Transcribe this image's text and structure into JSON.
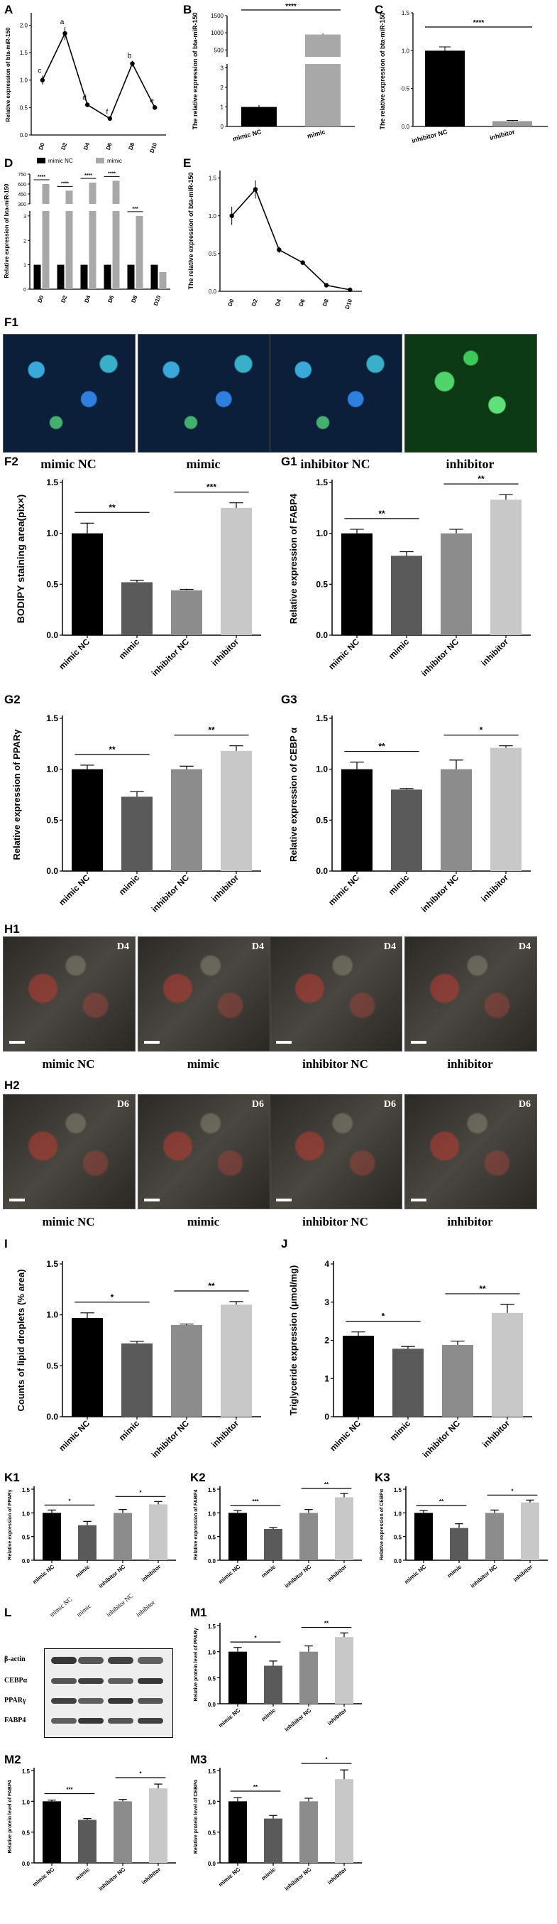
{
  "labels": {
    "A": "A",
    "B": "B",
    "C": "C",
    "D": "D",
    "E": "E",
    "F1": "F1",
    "F2": "F2",
    "G1": "G1",
    "G2": "G2",
    "G3": "G3",
    "H1": "H1",
    "H2": "H2",
    "I": "I",
    "J": "J",
    "K1": "K1",
    "K2": "K2",
    "K3": "K3",
    "L": "L",
    "M1": "M1",
    "M2": "M2",
    "M3": "M3"
  },
  "groups4": [
    "mimic NC",
    "mimic",
    "inhibitor NC",
    "inhibitor"
  ],
  "days6": [
    "D0",
    "D2",
    "D4",
    "D6",
    "D8",
    "D10"
  ],
  "colors": {
    "black": "#000000",
    "darkgray": "#5a5a5a",
    "midgray": "#8c8c8c",
    "lightgray": "#c8c8c8",
    "blue": "#2a4cc7",
    "green": "#2fbf4f"
  },
  "fluor": {
    "captions": [
      "mimic NC",
      "mimic",
      "inhibitor NC",
      "inhibitor"
    ]
  },
  "oilred": {
    "row1": {
      "captions": [
        "mimic NC",
        "mimic",
        "inhibitor NC",
        "inhibitor"
      ],
      "tag": "D4"
    },
    "row2": {
      "captions": [
        "mimic NC",
        "mimic",
        "inhibitor NC",
        "inhibitor"
      ],
      "tag": "D6"
    }
  },
  "blot": {
    "lane_labels": [
      "mimic NC",
      "mimic",
      "inhibitor NC",
      "inhibitor"
    ],
    "proteins": [
      "β-actin",
      "CEBPα",
      "PPARγ",
      "FABP4"
    ]
  },
  "chart_data": [
    {
      "id": "A",
      "type": "line",
      "x": [
        "D0",
        "D2",
        "D4",
        "D6",
        "D8",
        "D10"
      ],
      "values": [
        1.0,
        1.85,
        0.55,
        0.3,
        1.3,
        0.5
      ],
      "errors": [
        0.08,
        0.12,
        0.04,
        0.03,
        0.05,
        0.04
      ],
      "letters": [
        "c",
        "a",
        "d",
        "f",
        "b",
        "e"
      ],
      "ylabel": "Relative expression of bta-miR-150",
      "yticks": [
        0.0,
        0.5,
        1.0,
        1.5,
        2.0
      ],
      "ylim": [
        0,
        2.2
      ]
    },
    {
      "id": "B",
      "type": "bar",
      "categories": [
        "mimic NC",
        "mimic"
      ],
      "values": [
        1,
        950
      ],
      "errors": [
        0.1,
        30
      ],
      "sig": "****",
      "ylabel": "The relative expression of bta-miR-150",
      "yticks_upper": [
        500,
        1000,
        1500
      ],
      "yticks_lower": [
        0,
        1,
        2,
        3
      ]
    },
    {
      "id": "C",
      "type": "bar",
      "categories": [
        "inhibitor NC",
        "inhibitor"
      ],
      "values": [
        1.0,
        0.07
      ],
      "errors": [
        0.05,
        0.01
      ],
      "sig": "****",
      "ylabel": "The relative expression of bta-miR-150",
      "yticks": [
        0.0,
        0.5,
        1.0,
        1.5
      ],
      "ylim": [
        0,
        1.5
      ]
    },
    {
      "id": "D",
      "type": "bar",
      "categories": [
        "D0",
        "D2",
        "D4",
        "D6",
        "D8",
        "D10"
      ],
      "series": [
        {
          "name": "mimic NC",
          "values": [
            1,
            1,
            1,
            1,
            1,
            1
          ]
        },
        {
          "name": "mimic",
          "values": [
            600,
            500,
            620,
            650,
            3,
            0.7
          ]
        }
      ],
      "sig": [
        "****",
        "****",
        "****",
        "****",
        "***",
        ""
      ],
      "ylabel": "Relative expression of bta-miR-150",
      "yticks_upper": [
        300,
        450,
        600,
        750
      ],
      "yticks_lower": [
        0,
        1,
        2,
        3
      ]
    },
    {
      "id": "E",
      "type": "line",
      "x": [
        "D0",
        "D2",
        "D4",
        "D6",
        "D8",
        "D10"
      ],
      "values": [
        1.0,
        1.35,
        0.55,
        0.38,
        0.08,
        0.02
      ],
      "errors": [
        0.12,
        0.12,
        0.04,
        0.03,
        0.02,
        0.01
      ],
      "ylabel": "The relative expression of bta-miR-150",
      "yticks": [
        0.0,
        0.5,
        1.0,
        1.5
      ],
      "ylim": [
        0,
        1.6
      ]
    },
    {
      "id": "F2",
      "type": "bar",
      "categories": [
        "mimic NC",
        "mimic",
        "inhibitor NC",
        "inhibitor"
      ],
      "values": [
        1.0,
        0.52,
        0.44,
        1.25
      ],
      "errors": [
        0.1,
        0.02,
        0.01,
        0.05
      ],
      "sig": [
        [
          "mimic NC",
          "mimic",
          "**"
        ],
        [
          "inhibitor NC",
          "inhibitor",
          "***"
        ]
      ],
      "ylabel": "BODIPY staining area(pix×)",
      "yticks": [
        0.0,
        0.5,
        1.0,
        1.5
      ],
      "ylim": [
        0,
        1.5
      ]
    },
    {
      "id": "G1",
      "type": "bar",
      "categories": [
        "mimic NC",
        "mimic",
        "inhibitor NC",
        "inhibitor"
      ],
      "values": [
        1.0,
        0.78,
        1.0,
        1.33
      ],
      "errors": [
        0.04,
        0.04,
        0.04,
        0.05
      ],
      "sig": [
        [
          "mimic NC",
          "mimic",
          "**"
        ],
        [
          "inhibitor NC",
          "inhibitor",
          "**"
        ]
      ],
      "ylabel": "Relative expression of FABP4",
      "yticks": [
        0.0,
        0.5,
        1.0,
        1.5
      ],
      "ylim": [
        0,
        1.5
      ]
    },
    {
      "id": "G2",
      "type": "bar",
      "categories": [
        "mimic NC",
        "mimic",
        "inhibitor NC",
        "inhibitor"
      ],
      "values": [
        1.0,
        0.73,
        1.0,
        1.18
      ],
      "errors": [
        0.04,
        0.05,
        0.03,
        0.05
      ],
      "sig": [
        [
          "mimic NC",
          "mimic",
          "**"
        ],
        [
          "inhibitor NC",
          "inhibitor",
          "**"
        ]
      ],
      "ylabel": "Relative expression of PPARγ",
      "yticks": [
        0.0,
        0.5,
        1.0,
        1.5
      ],
      "ylim": [
        0,
        1.5
      ]
    },
    {
      "id": "G3",
      "type": "bar",
      "categories": [
        "mimic NC",
        "mimic",
        "inhibitor NC",
        "inhibitor"
      ],
      "values": [
        1.0,
        0.8,
        1.0,
        1.21
      ],
      "errors": [
        0.07,
        0.01,
        0.09,
        0.02
      ],
      "sig": [
        [
          "mimic NC",
          "mimic",
          "**"
        ],
        [
          "inhibitor NC",
          "inhibitor",
          "*"
        ]
      ],
      "ylabel": "Relative expression of CEBP α",
      "yticks": [
        0.0,
        0.5,
        1.0,
        1.5
      ],
      "ylim": [
        0,
        1.5
      ]
    },
    {
      "id": "I",
      "type": "bar",
      "categories": [
        "mimic NC",
        "mimic",
        "inhibitor NC",
        "inhibitor"
      ],
      "values": [
        0.97,
        0.72,
        0.9,
        1.1
      ],
      "errors": [
        0.05,
        0.02,
        0.01,
        0.03
      ],
      "sig": [
        [
          "mimic NC",
          "mimic",
          "*"
        ],
        [
          "inhibitor NC",
          "inhibitor",
          "**"
        ]
      ],
      "ylabel": "Counts of lipid droplets (% area)",
      "yticks": [
        0.0,
        0.5,
        1.0,
        1.5
      ],
      "ylim": [
        0,
        1.5
      ]
    },
    {
      "id": "J",
      "type": "bar",
      "categories": [
        "mimic NC",
        "mimic",
        "inhibitor NC",
        "inhibitor"
      ],
      "values": [
        2.12,
        1.78,
        1.88,
        2.72
      ],
      "errors": [
        0.1,
        0.06,
        0.1,
        0.22
      ],
      "sig": [
        [
          "mimic NC",
          "mimic",
          "*"
        ],
        [
          "inhibitor NC",
          "inhibitor",
          "**"
        ]
      ],
      "ylabel": "Triglyceride expression (μmol/mg)",
      "yticks": [
        0,
        1,
        2,
        3,
        4
      ],
      "ylim": [
        0,
        4
      ]
    },
    {
      "id": "K1",
      "type": "bar",
      "categories": [
        "mimic NC",
        "mimic",
        "inhibitor NC",
        "inhibitor"
      ],
      "values": [
        1.0,
        0.74,
        1.0,
        1.18
      ],
      "errors": [
        0.06,
        0.08,
        0.07,
        0.06
      ],
      "sig": [
        [
          "mimic NC",
          "mimic",
          "*"
        ],
        [
          "inhibitor NC",
          "inhibitor",
          "*"
        ]
      ],
      "ylabel": "Relative expression of PPARγ",
      "yticks": [
        0.0,
        0.5,
        1.0,
        1.5
      ],
      "ylim": [
        0,
        1.5
      ]
    },
    {
      "id": "K2",
      "type": "bar",
      "categories": [
        "mimic NC",
        "mimic",
        "inhibitor NC",
        "inhibitor"
      ],
      "values": [
        1.0,
        0.66,
        1.0,
        1.33
      ],
      "errors": [
        0.05,
        0.03,
        0.07,
        0.08
      ],
      "sig": [
        [
          "mimic NC",
          "mimic",
          "***"
        ],
        [
          "inhibitor NC",
          "inhibitor",
          "**"
        ]
      ],
      "ylabel": "Relative expression of FABP4",
      "yticks": [
        0.0,
        0.5,
        1.0,
        1.5
      ],
      "ylim": [
        0,
        1.5
      ]
    },
    {
      "id": "K3",
      "type": "bar",
      "categories": [
        "mimic NC",
        "mimic",
        "inhibitor NC",
        "inhibitor"
      ],
      "values": [
        1.0,
        0.68,
        1.0,
        1.22
      ],
      "errors": [
        0.05,
        0.09,
        0.06,
        0.05
      ],
      "sig": [
        [
          "mimic NC",
          "mimic",
          "**"
        ],
        [
          "inhibitor NC",
          "inhibitor",
          "*"
        ]
      ],
      "ylabel": "Relative expression of CEBPα",
      "yticks": [
        0.0,
        0.5,
        1.0,
        1.5
      ],
      "ylim": [
        0,
        1.5
      ]
    },
    {
      "id": "M1",
      "type": "bar",
      "categories": [
        "mimic NC",
        "mimic",
        "inhibitor NC",
        "inhibitor"
      ],
      "values": [
        1.0,
        0.73,
        1.0,
        1.28
      ],
      "errors": [
        0.08,
        0.09,
        0.11,
        0.08
      ],
      "sig": [
        [
          "mimic NC",
          "mimic",
          "*"
        ],
        [
          "inhibitor NC",
          "inhibitor",
          "**"
        ]
      ],
      "ylabel": "Relative protein level of PPARγ",
      "yticks": [
        0.0,
        0.5,
        1.0,
        1.5
      ],
      "ylim": [
        0,
        1.5
      ]
    },
    {
      "id": "M2",
      "type": "bar",
      "categories": [
        "mimic NC",
        "mimic",
        "inhibitor NC",
        "inhibitor"
      ],
      "values": [
        1.0,
        0.7,
        1.0,
        1.21
      ],
      "errors": [
        0.02,
        0.02,
        0.03,
        0.07
      ],
      "sig": [
        [
          "mimic NC",
          "mimic",
          "***"
        ],
        [
          "inhibitor NC",
          "inhibitor",
          "*"
        ]
      ],
      "ylabel": "Relative protein level of FABP4",
      "yticks": [
        0.0,
        0.5,
        1.0,
        1.5
      ],
      "ylim": [
        0,
        1.5
      ]
    },
    {
      "id": "M3",
      "type": "bar",
      "categories": [
        "mimic NC",
        "mimic",
        "inhibitor NC",
        "inhibitor"
      ],
      "values": [
        1.0,
        0.72,
        1.0,
        1.36
      ],
      "errors": [
        0.06,
        0.05,
        0.05,
        0.15
      ],
      "sig": [
        [
          "mimic NC",
          "mimic",
          "**"
        ],
        [
          "inhibitor NC",
          "inhibitor",
          "*"
        ]
      ],
      "ylabel": "Relative protein level of CEBPα",
      "yticks": [
        0.0,
        0.5,
        1.0,
        1.5
      ],
      "ylim": [
        0,
        1.5
      ]
    }
  ]
}
